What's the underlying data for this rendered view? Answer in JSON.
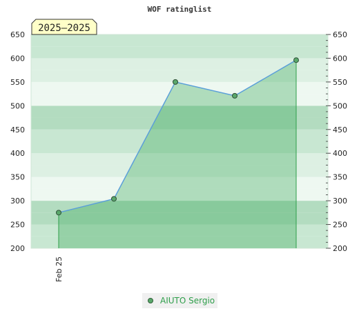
{
  "chart_data": {
    "type": "area",
    "title": "WOF ratinglist",
    "period_badge": "2025–2025",
    "y_ticks": [
      "200",
      "250",
      "300",
      "350",
      "400",
      "450",
      "500",
      "550",
      "600",
      "650"
    ],
    "ylim": [
      200,
      650
    ],
    "x_tick_labels": [
      {
        "label": "Feb 25",
        "index": 0
      }
    ],
    "series": [
      {
        "name": "AIUTO Sergio",
        "values": [
          275,
          304,
          550,
          521,
          596
        ]
      }
    ],
    "grid": true,
    "legend_position": "bottom-center",
    "colors": {
      "band_dark": "#b3dcc0",
      "band_mid": "#c8e7d2",
      "band_light": "#ddf0e3",
      "band_lightest": "#eef8f1",
      "area_fill": "#3aa85a",
      "line": "#5b9fd9",
      "marker": "#5aa86b",
      "badge_bg": "#ffffc8"
    }
  }
}
